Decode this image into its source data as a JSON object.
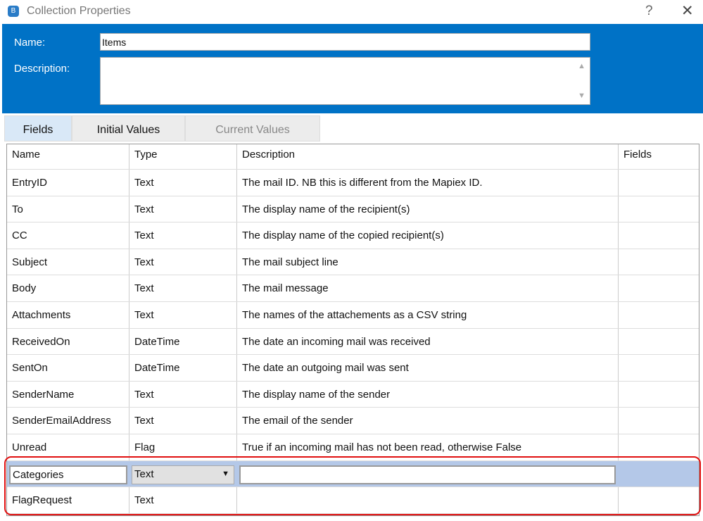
{
  "window": {
    "title": "Collection Properties",
    "help": "?",
    "close": "✕",
    "icon": "blueprism-icon"
  },
  "form": {
    "name_label": "Name:",
    "name_value": "Items",
    "description_label": "Description:",
    "description_value": ""
  },
  "tabs": [
    {
      "label": "Fields",
      "active": true
    },
    {
      "label": "Initial Values"
    },
    {
      "label": "Current Values",
      "disabled": true
    }
  ],
  "table": {
    "columns": [
      "Name",
      "Type",
      "Description",
      "Fields"
    ],
    "rows": [
      {
        "name": "EntryID",
        "type": "Text",
        "description": "The mail ID. NB this is different from the Mapiex ID."
      },
      {
        "name": "To",
        "type": "Text",
        "description": "The display name of the recipient(s)"
      },
      {
        "name": "CC",
        "type": "Text",
        "description": "The display name of the copied recipient(s)"
      },
      {
        "name": "Subject",
        "type": "Text",
        "description": "The mail subject line"
      },
      {
        "name": "Body",
        "type": "Text",
        "description": "The mail message"
      },
      {
        "name": "Attachments",
        "type": "Text",
        "description": "The names of the attachements as a CSV string"
      },
      {
        "name": "ReceivedOn",
        "type": "DateTime",
        "description": "The date an incoming mail was received"
      },
      {
        "name": "SentOn",
        "type": "DateTime",
        "description": "The date an outgoing mail was sent"
      },
      {
        "name": "SenderName",
        "type": "Text",
        "description": "The display name of the sender"
      },
      {
        "name": "SenderEmailAddress",
        "type": "Text",
        "description": "The email of the sender"
      },
      {
        "name": "Unread",
        "type": "Flag",
        "description": "True if an incoming mail has not been read, otherwise False"
      }
    ],
    "editing_row": {
      "name": "Categories",
      "type": "Text",
      "description": ""
    },
    "last_row": {
      "name": "FlagRequest",
      "type": "Text",
      "description": ""
    }
  },
  "colors": {
    "header": "#0072c6",
    "selected_row": "#b4c8e8",
    "highlight": "#e01010"
  }
}
